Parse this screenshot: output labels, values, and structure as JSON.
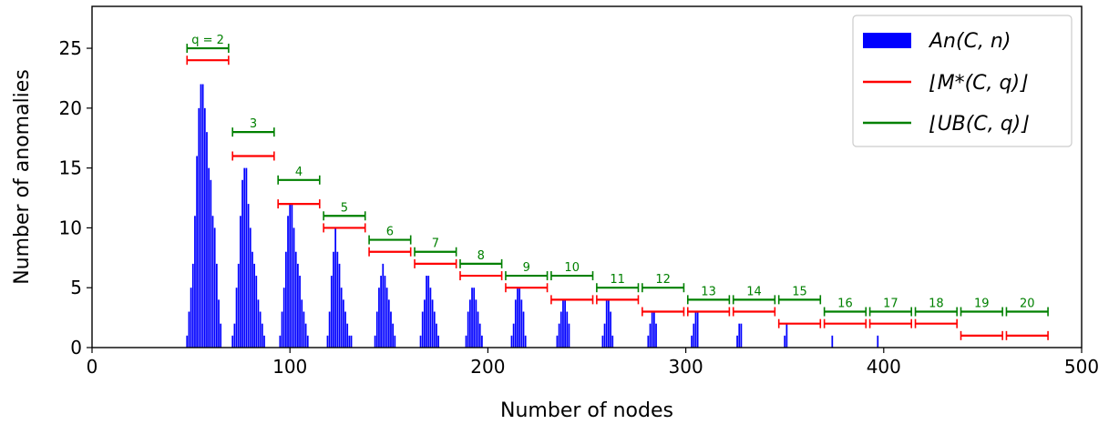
{
  "chart_data": {
    "type": "bar",
    "xlabel": "Number of nodes",
    "ylabel": "Number of anomalies",
    "xlim": [
      0,
      500
    ],
    "ylim": [
      0,
      28.5
    ],
    "xticks": [
      0,
      100,
      200,
      300,
      400,
      500
    ],
    "yticks": [
      0,
      5,
      10,
      15,
      20,
      25
    ],
    "grid": false,
    "legend_position": "top-right",
    "colors": {
      "bars": "#0000ff",
      "lower": "#ff0000",
      "upper": "#008000",
      "frame": "#000000"
    },
    "legend": [
      {
        "key": "bars",
        "label": "An(C, n)"
      },
      {
        "key": "lower",
        "label": "⌊M*(C, q)⌋"
      },
      {
        "key": "upper",
        "label": "⌊UB(C, q)⌋"
      }
    ],
    "series": [
      {
        "name": "An(C, n)",
        "type": "bar",
        "x": [
          48,
          49,
          50,
          51,
          52,
          53,
          54,
          55,
          56,
          57,
          58,
          59,
          60,
          61,
          62,
          63,
          64,
          65,
          71,
          72,
          73,
          74,
          75,
          76,
          77,
          78,
          79,
          80,
          81,
          82,
          83,
          84,
          85,
          86,
          87,
          95,
          96,
          97,
          98,
          99,
          100,
          101,
          102,
          103,
          104,
          105,
          106,
          107,
          108,
          109,
          119,
          120,
          121,
          122,
          123,
          124,
          125,
          126,
          127,
          128,
          129,
          130,
          131,
          143,
          144,
          145,
          146,
          147,
          148,
          149,
          150,
          151,
          152,
          153,
          166,
          167,
          168,
          169,
          170,
          171,
          172,
          173,
          174,
          175,
          189,
          190,
          191,
          192,
          193,
          194,
          195,
          196,
          197,
          212,
          213,
          214,
          215,
          216,
          217,
          218,
          219,
          235,
          236,
          237,
          238,
          239,
          240,
          241,
          258,
          259,
          260,
          261,
          262,
          263,
          281,
          282,
          283,
          284,
          285,
          303,
          304,
          305,
          306,
          326,
          327,
          328,
          350,
          351,
          374,
          397
        ],
        "values": [
          1,
          3,
          5,
          7,
          11,
          16,
          20,
          22,
          22,
          20,
          18,
          15,
          14,
          11,
          10,
          7,
          4,
          2,
          1,
          2,
          5,
          7,
          11,
          14,
          15,
          15,
          12,
          10,
          8,
          7,
          6,
          4,
          3,
          2,
          1,
          1,
          3,
          5,
          8,
          11,
          12,
          12,
          10,
          8,
          7,
          6,
          4,
          3,
          2,
          1,
          1,
          3,
          6,
          8,
          10,
          8,
          7,
          5,
          4,
          3,
          2,
          1,
          1,
          1,
          3,
          5,
          6,
          7,
          6,
          5,
          4,
          3,
          2,
          1,
          1,
          3,
          4,
          6,
          6,
          5,
          4,
          3,
          2,
          1,
          1,
          3,
          4,
          5,
          5,
          4,
          3,
          2,
          1,
          1,
          2,
          4,
          5,
          5,
          4,
          3,
          1,
          1,
          2,
          3,
          4,
          4,
          3,
          2,
          1,
          2,
          4,
          4,
          3,
          1,
          1,
          2,
          3,
          3,
          2,
          1,
          2,
          3,
          3,
          1,
          2,
          2,
          1,
          2,
          1,
          1
        ]
      },
      {
        "name": "⌊M*(C, q)⌋",
        "type": "range",
        "segments": [
          {
            "x0": 48,
            "x1": 69,
            "y": 24
          },
          {
            "x0": 71,
            "x1": 92,
            "y": 16
          },
          {
            "x0": 94,
            "x1": 115,
            "y": 12
          },
          {
            "x0": 117,
            "x1": 138,
            "y": 10
          },
          {
            "x0": 140,
            "x1": 161,
            "y": 8
          },
          {
            "x0": 163,
            "x1": 184,
            "y": 7
          },
          {
            "x0": 186,
            "x1": 207,
            "y": 6
          },
          {
            "x0": 209,
            "x1": 230,
            "y": 5
          },
          {
            "x0": 232,
            "x1": 253,
            "y": 4
          },
          {
            "x0": 255,
            "x1": 276,
            "y": 4
          },
          {
            "x0": 278,
            "x1": 299,
            "y": 3
          },
          {
            "x0": 301,
            "x1": 322,
            "y": 3
          },
          {
            "x0": 324,
            "x1": 345,
            "y": 3
          },
          {
            "x0": 347,
            "x1": 368,
            "y": 2
          },
          {
            "x0": 370,
            "x1": 391,
            "y": 2
          },
          {
            "x0": 393,
            "x1": 414,
            "y": 2
          },
          {
            "x0": 416,
            "x1": 437,
            "y": 2
          },
          {
            "x0": 439,
            "x1": 460,
            "y": 1
          },
          {
            "x0": 462,
            "x1": 483,
            "y": 1
          }
        ]
      },
      {
        "name": "⌊UB(C, q)⌋",
        "type": "range",
        "segments": [
          {
            "x0": 48,
            "x1": 69,
            "y": 25,
            "label": "q = 2"
          },
          {
            "x0": 71,
            "x1": 92,
            "y": 18,
            "label": "3"
          },
          {
            "x0": 94,
            "x1": 115,
            "y": 14,
            "label": "4"
          },
          {
            "x0": 117,
            "x1": 138,
            "y": 11,
            "label": "5"
          },
          {
            "x0": 140,
            "x1": 161,
            "y": 9,
            "label": "6"
          },
          {
            "x0": 163,
            "x1": 184,
            "y": 8,
            "label": "7"
          },
          {
            "x0": 186,
            "x1": 207,
            "y": 7,
            "label": "8"
          },
          {
            "x0": 209,
            "x1": 230,
            "y": 6,
            "label": "9"
          },
          {
            "x0": 232,
            "x1": 253,
            "y": 6,
            "label": "10"
          },
          {
            "x0": 255,
            "x1": 276,
            "y": 5,
            "label": "11"
          },
          {
            "x0": 278,
            "x1": 299,
            "y": 5,
            "label": "12"
          },
          {
            "x0": 301,
            "x1": 322,
            "y": 4,
            "label": "13"
          },
          {
            "x0": 324,
            "x1": 345,
            "y": 4,
            "label": "14"
          },
          {
            "x0": 347,
            "x1": 368,
            "y": 4,
            "label": "15"
          },
          {
            "x0": 370,
            "x1": 391,
            "y": 3,
            "label": "16"
          },
          {
            "x0": 393,
            "x1": 414,
            "y": 3,
            "label": "17"
          },
          {
            "x0": 416,
            "x1": 437,
            "y": 3,
            "label": "18"
          },
          {
            "x0": 439,
            "x1": 460,
            "y": 3,
            "label": "19"
          },
          {
            "x0": 462,
            "x1": 483,
            "y": 3,
            "label": "20"
          }
        ]
      }
    ]
  }
}
